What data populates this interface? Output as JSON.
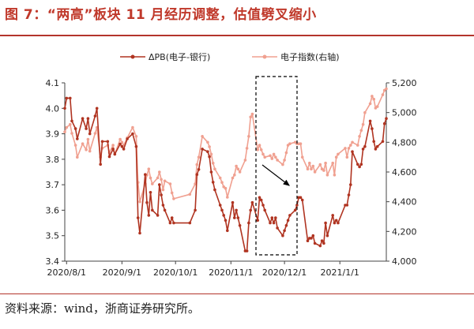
{
  "title": "图 7：“两高”板块 11 月经历调整，估值劈叉缩小",
  "source": "资料来源：wind，浙商证券研究所。",
  "colors": {
    "dpb": "#b03421",
    "index": "#f0a090",
    "title": "#c0392b",
    "box": "#000000"
  },
  "chart_data": {
    "type": "line",
    "x_ticks": [
      "2020/8/1",
      "2020/9/1",
      "2020/10/1",
      "2020/11/1",
      "2020/12/1",
      "2021/1/1"
    ],
    "y_left": {
      "ticks": [
        "3.4",
        "3.5",
        "3.6",
        "3.7",
        "3.8",
        "3.9",
        "4.0",
        "4.1"
      ],
      "lim": [
        3.4,
        4.1
      ]
    },
    "y_right": {
      "ticks": [
        "4,000",
        "4,200",
        "4,400",
        "4,600",
        "4,800",
        "5,000",
        "5,200"
      ],
      "lim": [
        4000,
        5200
      ]
    },
    "grid": false,
    "legend_position": "top",
    "x_domain": [
      "2020-07-31",
      "2021-01-27"
    ],
    "series": [
      {
        "name": "ΔPB(电子-银行)",
        "axis": "left",
        "dates": [
          "2020-07-31",
          "2020-08-01",
          "2020-08-03",
          "2020-08-04",
          "2020-08-06",
          "2020-08-07",
          "2020-08-10",
          "2020-08-12",
          "2020-08-13",
          "2020-08-14",
          "2020-08-17",
          "2020-08-18",
          "2020-08-20",
          "2020-08-21",
          "2020-08-24",
          "2020-08-25",
          "2020-08-27",
          "2020-08-28",
          "2020-08-31",
          "2020-09-01",
          "2020-09-02",
          "2020-09-04",
          "2020-09-07",
          "2020-09-09",
          "2020-09-10",
          "2020-09-11",
          "2020-09-14",
          "2020-09-15",
          "2020-09-16",
          "2020-09-17",
          "2020-09-18",
          "2020-09-21",
          "2020-09-22",
          "2020-09-23",
          "2020-09-24",
          "2020-09-25",
          "2020-09-28",
          "2020-09-29",
          "2020-09-30",
          "2020-10-09",
          "2020-10-12",
          "2020-10-13",
          "2020-10-14",
          "2020-10-16",
          "2020-10-19",
          "2020-10-20",
          "2020-10-21",
          "2020-10-22",
          "2020-10-23",
          "2020-10-26",
          "2020-10-27",
          "2020-10-28",
          "2020-10-29",
          "2020-10-30",
          "2020-11-02",
          "2020-11-03",
          "2020-11-04",
          "2020-11-05",
          "2020-11-06",
          "2020-11-09",
          "2020-11-10",
          "2020-11-11",
          "2020-11-12",
          "2020-11-13",
          "2020-11-16",
          "2020-11-17",
          "2020-11-18",
          "2020-11-19",
          "2020-11-20",
          "2020-11-23",
          "2020-11-24",
          "2020-11-25",
          "2020-11-26",
          "2020-11-27",
          "2020-11-30",
          "2020-12-01",
          "2020-12-02",
          "2020-12-03",
          "2020-12-04",
          "2020-12-07",
          "2020-12-08",
          "2020-12-09",
          "2020-12-10",
          "2020-12-11",
          "2020-12-14",
          "2020-12-15",
          "2020-12-16",
          "2020-12-17",
          "2020-12-18",
          "2020-12-21",
          "2020-12-22",
          "2020-12-23",
          "2020-12-24",
          "2020-12-25",
          "2020-12-28",
          "2020-12-29",
          "2020-12-30",
          "2020-12-31",
          "2021-01-04",
          "2021-01-05",
          "2021-01-06",
          "2021-01-07",
          "2021-01-08",
          "2021-01-11",
          "2021-01-12",
          "2021-01-13",
          "2021-01-14",
          "2021-01-15",
          "2021-01-18",
          "2021-01-19",
          "2021-01-20",
          "2021-01-21",
          "2021-01-22",
          "2021-01-25",
          "2021-01-26",
          "2021-01-27"
        ],
        "values": [
          4.0,
          4.04,
          4.04,
          3.95,
          3.92,
          3.88,
          3.96,
          3.92,
          3.96,
          3.9,
          3.97,
          4.0,
          3.78,
          3.87,
          3.87,
          3.81,
          3.84,
          3.82,
          3.86,
          3.85,
          3.84,
          3.88,
          3.9,
          3.85,
          3.57,
          3.51,
          3.74,
          3.63,
          3.58,
          3.67,
          3.6,
          3.58,
          3.7,
          3.66,
          3.62,
          3.6,
          3.55,
          3.57,
          3.55,
          3.55,
          3.6,
          3.74,
          3.76,
          3.84,
          3.83,
          3.81,
          3.75,
          3.71,
          3.68,
          3.62,
          3.6,
          3.58,
          3.56,
          3.52,
          3.63,
          3.57,
          3.6,
          3.57,
          3.54,
          3.44,
          3.44,
          3.55,
          3.6,
          3.63,
          3.56,
          3.65,
          3.64,
          3.62,
          3.6,
          3.55,
          3.57,
          3.55,
          3.57,
          3.53,
          3.5,
          3.52,
          3.54,
          3.56,
          3.58,
          3.6,
          3.62,
          3.65,
          3.65,
          3.64,
          3.48,
          3.49,
          3.49,
          3.5,
          3.47,
          3.46,
          3.48,
          3.47,
          3.55,
          3.5,
          3.58,
          3.55,
          3.56,
          3.55,
          3.62,
          3.62,
          3.66,
          3.7,
          3.83,
          3.78,
          3.77,
          3.78,
          3.84,
          3.85,
          3.95,
          3.92,
          3.87,
          3.84,
          3.85,
          3.87,
          3.94,
          3.96
        ]
      },
      {
        "name": "电子指数(右轴)",
        "axis": "right",
        "dates": [
          "2020-07-31",
          "2020-08-01",
          "2020-08-03",
          "2020-08-04",
          "2020-08-06",
          "2020-08-07",
          "2020-08-10",
          "2020-08-12",
          "2020-08-13",
          "2020-08-14",
          "2020-08-17",
          "2020-08-18",
          "2020-08-20",
          "2020-08-21",
          "2020-08-24",
          "2020-08-25",
          "2020-08-27",
          "2020-08-28",
          "2020-08-31",
          "2020-09-01",
          "2020-09-02",
          "2020-09-04",
          "2020-09-07",
          "2020-09-09",
          "2020-09-10",
          "2020-09-11",
          "2020-09-14",
          "2020-09-15",
          "2020-09-16",
          "2020-09-17",
          "2020-09-18",
          "2020-09-21",
          "2020-09-22",
          "2020-09-23",
          "2020-09-24",
          "2020-09-25",
          "2020-09-28",
          "2020-09-29",
          "2020-09-30",
          "2020-10-09",
          "2020-10-12",
          "2020-10-13",
          "2020-10-14",
          "2020-10-16",
          "2020-10-19",
          "2020-10-20",
          "2020-10-21",
          "2020-10-22",
          "2020-10-23",
          "2020-10-26",
          "2020-10-27",
          "2020-10-28",
          "2020-10-29",
          "2020-10-30",
          "2020-11-02",
          "2020-11-03",
          "2020-11-04",
          "2020-11-05",
          "2020-11-06",
          "2020-11-09",
          "2020-11-10",
          "2020-11-11",
          "2020-11-12",
          "2020-11-13",
          "2020-11-16",
          "2020-11-17",
          "2020-11-18",
          "2020-11-19",
          "2020-11-20",
          "2020-11-23",
          "2020-11-24",
          "2020-11-25",
          "2020-11-26",
          "2020-11-27",
          "2020-11-30",
          "2020-12-01",
          "2020-12-02",
          "2020-12-03",
          "2020-12-04",
          "2020-12-07",
          "2020-12-08",
          "2020-12-09",
          "2020-12-10",
          "2020-12-11",
          "2020-12-14",
          "2020-12-15",
          "2020-12-16",
          "2020-12-17",
          "2020-12-18",
          "2020-12-21",
          "2020-12-22",
          "2020-12-23",
          "2020-12-24",
          "2020-12-25",
          "2020-12-28",
          "2020-12-29",
          "2020-12-30",
          "2020-12-31",
          "2021-01-04",
          "2021-01-05",
          "2021-01-06",
          "2021-01-07",
          "2021-01-08",
          "2021-01-11",
          "2021-01-12",
          "2021-01-13",
          "2021-01-14",
          "2021-01-15",
          "2021-01-18",
          "2021-01-19",
          "2021-01-20",
          "2021-01-21",
          "2021-01-22",
          "2021-01-25",
          "2021-01-26",
          "2021-01-27"
        ],
        "values": [
          4870,
          4900,
          4920,
          4860,
          4780,
          4700,
          4790,
          4750,
          4820,
          4740,
          4860,
          4900,
          4700,
          4760,
          4780,
          4730,
          4780,
          4720,
          4820,
          4800,
          4780,
          4830,
          4900,
          4840,
          4530,
          4400,
          4520,
          4580,
          4620,
          4560,
          4520,
          4560,
          4600,
          4550,
          4480,
          4540,
          4520,
          4460,
          4420,
          4450,
          4520,
          4650,
          4700,
          4840,
          4800,
          4770,
          4720,
          4660,
          4620,
          4560,
          4530,
          4500,
          4490,
          4430,
          4560,
          4580,
          4640,
          4620,
          4600,
          4680,
          4760,
          4840,
          4970,
          4990,
          4750,
          4780,
          4750,
          4720,
          4700,
          4710,
          4690,
          4720,
          4700,
          4680,
          4650,
          4680,
          4730,
          4780,
          4790,
          4800,
          4790,
          4790,
          4790,
          4700,
          4620,
          4660,
          4620,
          4640,
          4600,
          4650,
          4620,
          4610,
          4660,
          4580,
          4660,
          4580,
          4700,
          4720,
          4760,
          4700,
          4760,
          4780,
          4800,
          4780,
          4840,
          4880,
          4920,
          5000,
          5060,
          5110,
          5090,
          5030,
          5040,
          5120,
          5150,
          5160
        ]
      }
    ],
    "annotations": [
      "dashed box highlighting the November 2020 adjustment window",
      "arrow pointing down-right inside the box"
    ]
  }
}
